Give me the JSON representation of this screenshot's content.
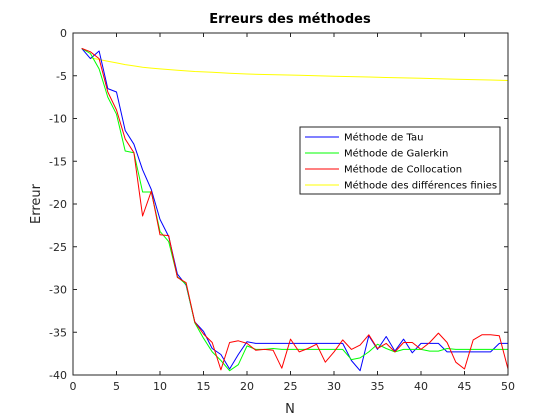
{
  "chart_data": {
    "type": "line",
    "title": "Erreurs des méthodes",
    "xlabel": "N",
    "ylabel": "Erreur",
    "xlim": [
      0,
      50
    ],
    "ylim": [
      -40,
      0
    ],
    "xticks": [
      0,
      5,
      10,
      15,
      20,
      25,
      30,
      35,
      40,
      45,
      50
    ],
    "yticks": [
      0,
      -5,
      -10,
      -15,
      -20,
      -25,
      -30,
      -35,
      -40
    ],
    "grid": false,
    "legend_position": "right",
    "series": [
      {
        "name": "Méthode de Tau",
        "color": "#0000ff",
        "x": [
          1,
          2,
          3,
          4,
          5,
          6,
          7,
          8,
          9,
          10,
          11,
          12,
          13,
          14,
          15,
          16,
          17,
          18,
          19,
          20,
          21,
          22,
          23,
          24,
          25,
          26,
          27,
          28,
          29,
          30,
          31,
          32,
          33,
          34,
          35,
          36,
          37,
          38,
          39,
          40,
          41,
          42,
          43,
          44,
          45,
          46,
          47,
          48,
          49,
          50
        ],
        "y": [
          -1.8,
          -3.0,
          -2.1,
          -6.5,
          -6.9,
          -11.4,
          -13.0,
          -16.0,
          -18.3,
          -21.8,
          -23.8,
          -28.2,
          -29.5,
          -33.8,
          -34.9,
          -36.9,
          -37.6,
          -39.3,
          -37.6,
          -36.1,
          -36.3,
          -36.3,
          -36.3,
          -36.3,
          -36.3,
          -36.3,
          -36.3,
          -36.3,
          -36.3,
          -36.3,
          -36.3,
          -38.3,
          -39.5,
          -35.4,
          -37.0,
          -35.5,
          -37.2,
          -35.8,
          -37.4,
          -36.3,
          -36.3,
          -36.3,
          -37.3,
          -37.3,
          -37.3,
          -37.3,
          -37.3,
          -37.3,
          -36.3,
          -36.3
        ]
      },
      {
        "name": "Méthode de Galerkin",
        "color": "#00ff00",
        "x": [
          1,
          2,
          3,
          4,
          5,
          6,
          7,
          8,
          9,
          10,
          11,
          12,
          13,
          14,
          15,
          16,
          17,
          18,
          19,
          20,
          21,
          22,
          23,
          24,
          25,
          26,
          27,
          28,
          29,
          30,
          31,
          32,
          33,
          34,
          35,
          36,
          37,
          38,
          39,
          40,
          41,
          42,
          43,
          44,
          45,
          46,
          47,
          48,
          49,
          50
        ],
        "y": [
          -1.8,
          -2.4,
          -4.2,
          -7.5,
          -9.5,
          -13.8,
          -14.0,
          -18.6,
          -18.6,
          -23.2,
          -24.4,
          -28.5,
          -29.4,
          -33.9,
          -35.7,
          -37.3,
          -38.3,
          -39.5,
          -38.8,
          -36.6,
          -37.0,
          -37.0,
          -36.9,
          -37.0,
          -37.0,
          -37.0,
          -37.0,
          -37.0,
          -37.0,
          -37.0,
          -37.0,
          -38.2,
          -38.0,
          -37.3,
          -36.4,
          -36.9,
          -37.3,
          -37.0,
          -37.0,
          -37.0,
          -37.2,
          -37.2,
          -36.9,
          -37.0,
          -37.0,
          -37.0,
          -37.0,
          -37.0,
          -37.0,
          -37.0
        ]
      },
      {
        "name": "Méthode de Collocation",
        "color": "#ff0000",
        "x": [
          1,
          2,
          3,
          4,
          5,
          6,
          7,
          8,
          9,
          10,
          11,
          12,
          13,
          14,
          15,
          16,
          17,
          18,
          19,
          20,
          21,
          22,
          23,
          24,
          25,
          26,
          27,
          28,
          29,
          30,
          31,
          32,
          33,
          34,
          35,
          36,
          37,
          38,
          39,
          40,
          41,
          42,
          43,
          44,
          45,
          46,
          47,
          48,
          49,
          50
        ],
        "y": [
          -1.8,
          -2.2,
          -3.0,
          -6.9,
          -9.0,
          -12.4,
          -14.0,
          -21.4,
          -18.5,
          -23.6,
          -23.7,
          -28.6,
          -29.2,
          -33.8,
          -35.2,
          -36.2,
          -39.4,
          -36.2,
          -36.0,
          -36.3,
          -37.1,
          -37.0,
          -37.1,
          -39.2,
          -35.8,
          -37.3,
          -36.9,
          -36.4,
          -38.5,
          -37.3,
          -35.9,
          -37.0,
          -36.5,
          -35.3,
          -36.9,
          -36.3,
          -37.3,
          -36.2,
          -36.2,
          -37.0,
          -36.2,
          -35.1,
          -36.2,
          -38.5,
          -39.3,
          -35.9,
          -35.3,
          -35.3,
          -35.4,
          -39.3
        ]
      },
      {
        "name": "Méthode des différences finies",
        "color": "#ffff00",
        "x": [
          2,
          3,
          4,
          5,
          6,
          7,
          8,
          9,
          10,
          12,
          14,
          16,
          18,
          20,
          22,
          24,
          26,
          28,
          30,
          32,
          34,
          36,
          38,
          40,
          42,
          44,
          46,
          48,
          50
        ],
        "y": [
          -2.9,
          -3.1,
          -3.3,
          -3.5,
          -3.7,
          -3.85,
          -4.0,
          -4.1,
          -4.2,
          -4.35,
          -4.5,
          -4.6,
          -4.7,
          -4.8,
          -4.85,
          -4.9,
          -4.95,
          -5.0,
          -5.05,
          -5.1,
          -5.15,
          -5.2,
          -5.25,
          -5.3,
          -5.35,
          -5.4,
          -5.45,
          -5.5,
          -5.55
        ]
      }
    ]
  }
}
